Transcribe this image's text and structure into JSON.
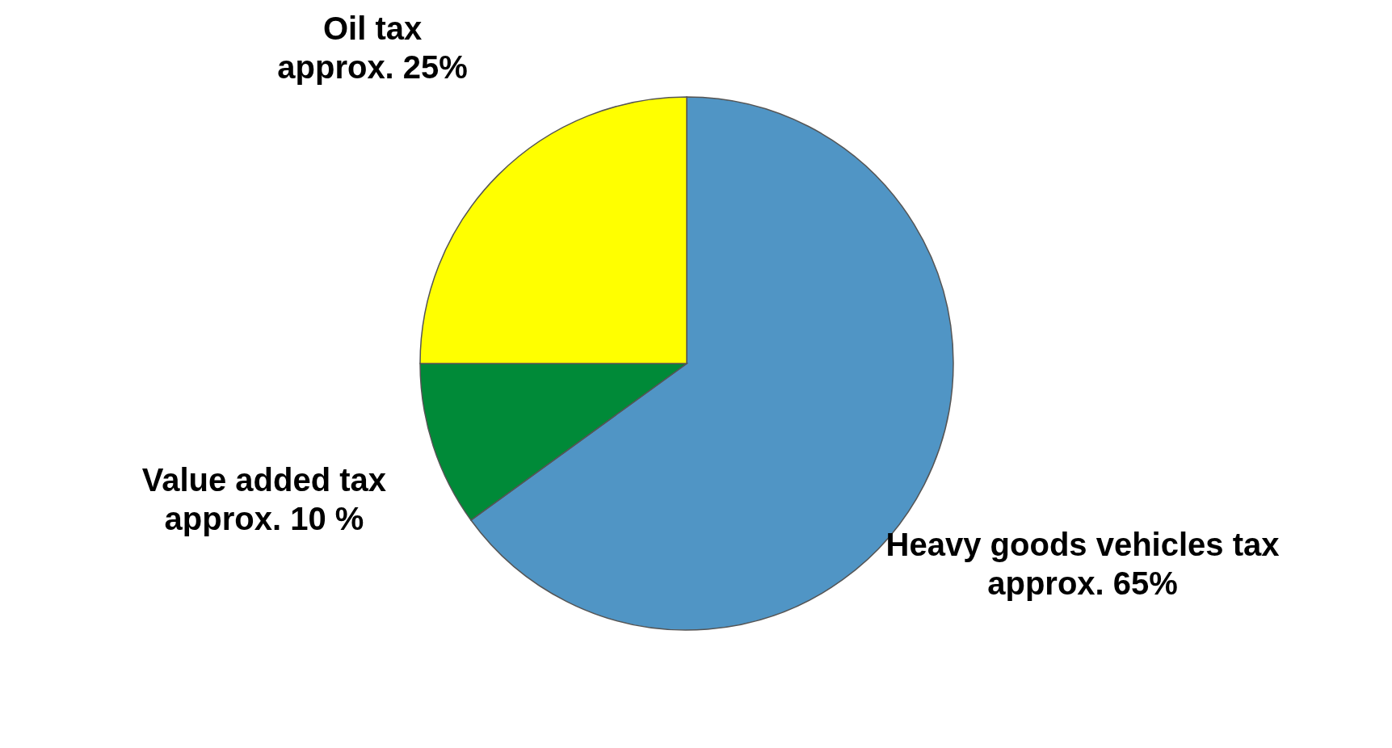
{
  "chart_data": {
    "type": "pie",
    "categories": [
      "Heavy goods vehicles tax",
      "Value added tax",
      "Oil tax"
    ],
    "values": [
      65,
      10,
      25
    ],
    "value_labels": [
      "approx. 65%",
      "approx. 10 %",
      "approx. 25%"
    ],
    "colors": [
      "#5095c5",
      "#008a38",
      "#ffff00"
    ],
    "legend": false
  }
}
